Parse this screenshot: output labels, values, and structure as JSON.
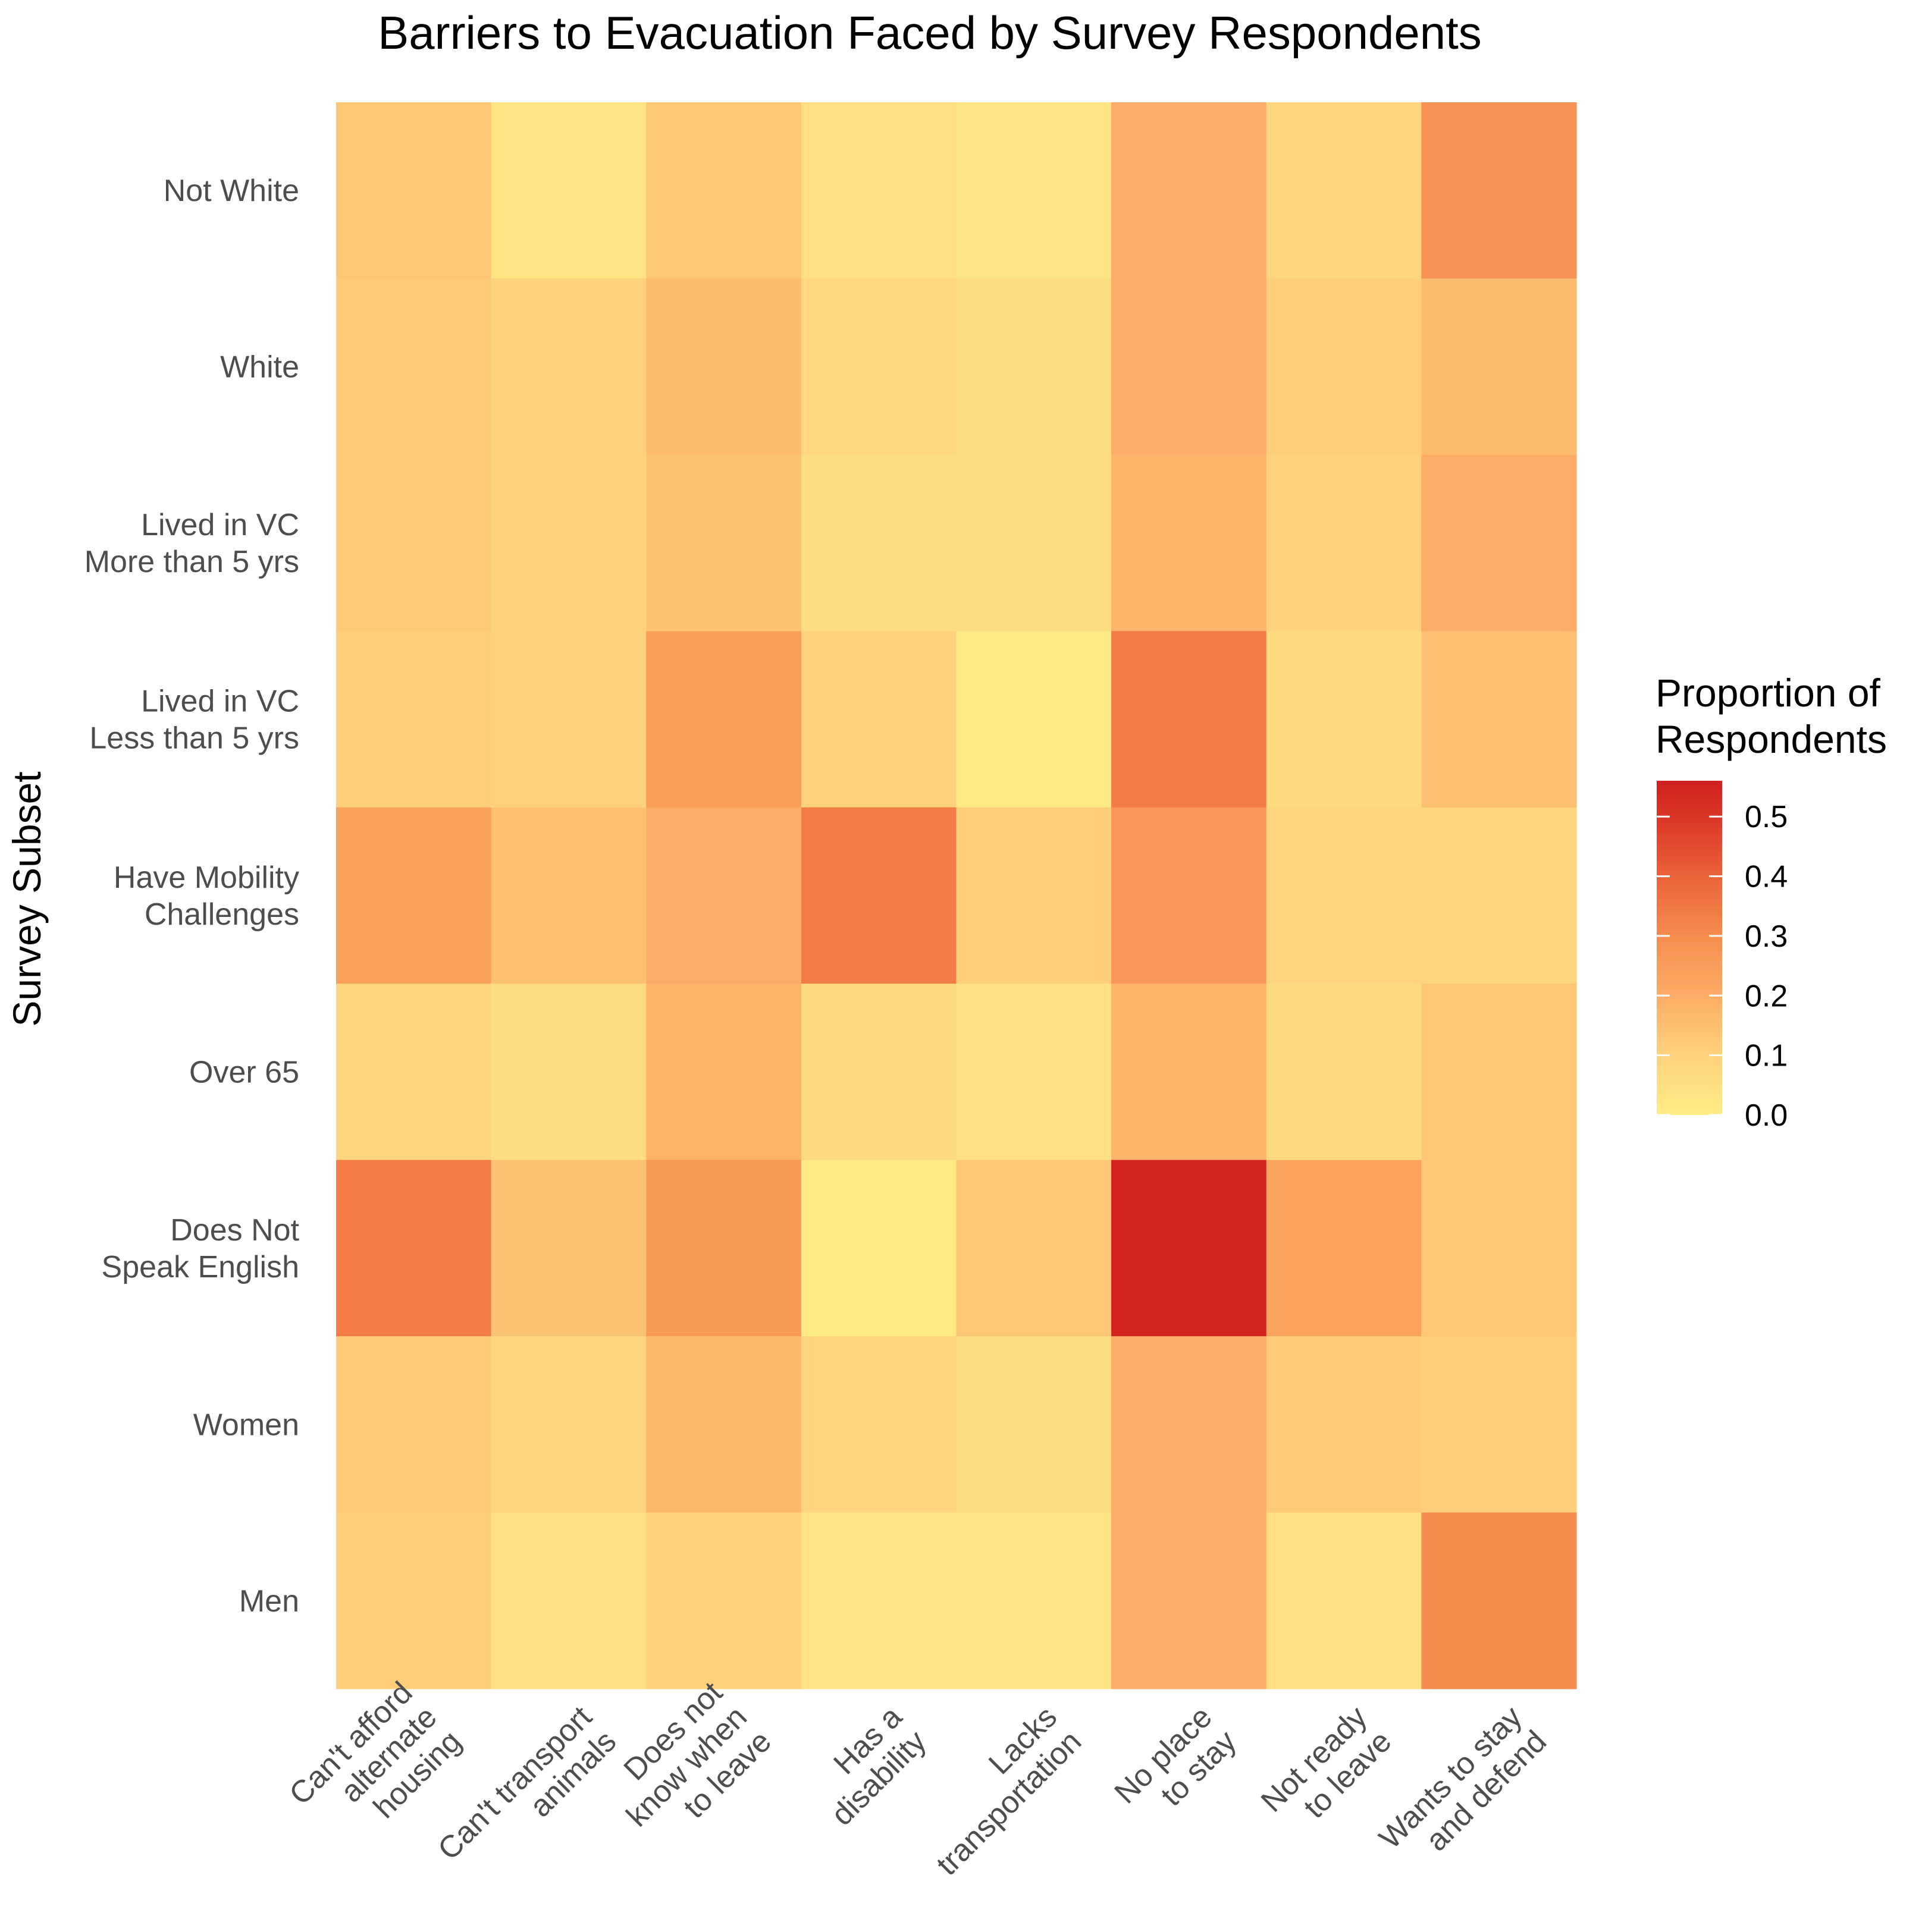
{
  "chart_data": {
    "type": "heatmap",
    "title": "Barriers to Evacuation Faced by Survey Respondents",
    "xlabel": "",
    "ylabel": "Survey Subset",
    "columns": [
      {
        "label_lines": [
          "Can't afford",
          "alternate",
          "housing"
        ]
      },
      {
        "label_lines": [
          "Can't transport",
          "animals"
        ]
      },
      {
        "label_lines": [
          "Does not",
          "know when",
          "to leave"
        ]
      },
      {
        "label_lines": [
          "Has a",
          "disability"
        ]
      },
      {
        "label_lines": [
          "Lacks",
          "transportation"
        ]
      },
      {
        "label_lines": [
          "No place",
          "to stay"
        ]
      },
      {
        "label_lines": [
          "Not ready",
          "to leave"
        ]
      },
      {
        "label_lines": [
          "Wants to stay",
          "and defend"
        ]
      }
    ],
    "rows": [
      {
        "label_lines": [
          "Not White"
        ],
        "values": [
          0.13,
          0.03,
          0.13,
          0.05,
          0.03,
          0.2,
          0.09,
          0.28
        ]
      },
      {
        "label_lines": [
          "White"
        ],
        "values": [
          0.12,
          0.1,
          0.16,
          0.08,
          0.06,
          0.2,
          0.11,
          0.16
        ]
      },
      {
        "label_lines": [
          "Lived in VC",
          "More than 5 yrs"
        ],
        "values": [
          0.12,
          0.1,
          0.14,
          0.06,
          0.06,
          0.18,
          0.1,
          0.2
        ]
      },
      {
        "label_lines": [
          "Lived in VC",
          "Less than 5 yrs"
        ],
        "values": [
          0.11,
          0.1,
          0.25,
          0.1,
          0.01,
          0.34,
          0.07,
          0.15
        ]
      },
      {
        "label_lines": [
          "Have Mobility",
          "Challenges"
        ],
        "values": [
          0.24,
          0.15,
          0.2,
          0.34,
          0.11,
          0.27,
          0.09,
          0.09
        ]
      },
      {
        "label_lines": [
          "Over 65"
        ],
        "values": [
          0.09,
          0.06,
          0.18,
          0.07,
          0.05,
          0.18,
          0.07,
          0.13
        ]
      },
      {
        "label_lines": [
          "Does Not",
          "Speak English"
        ],
        "values": [
          0.34,
          0.14,
          0.26,
          0.01,
          0.13,
          0.55,
          0.23,
          0.13
        ]
      },
      {
        "label_lines": [
          "Women"
        ],
        "values": [
          0.12,
          0.09,
          0.17,
          0.09,
          0.06,
          0.2,
          0.12,
          0.11
        ]
      },
      {
        "label_lines": [
          "Men"
        ],
        "values": [
          0.11,
          0.05,
          0.1,
          0.03,
          0.03,
          0.2,
          0.05,
          0.3
        ]
      }
    ],
    "color_scale": {
      "title_lines": [
        "Proportion of",
        "Respondents"
      ],
      "min": 0.0,
      "max": 0.56,
      "stops": [
        {
          "value": 0.0,
          "color": "#FFEC85"
        },
        {
          "value": 0.1,
          "color": "#FED27D"
        },
        {
          "value": 0.2,
          "color": "#FCAC66"
        },
        {
          "value": 0.3,
          "color": "#F58D4F"
        },
        {
          "value": 0.4,
          "color": "#EA6238"
        },
        {
          "value": 0.5,
          "color": "#DA3627"
        },
        {
          "value": 0.56,
          "color": "#D01F20"
        }
      ],
      "ticks": [
        0.0,
        0.1,
        0.2,
        0.3,
        0.4,
        0.5
      ],
      "tick_labels": [
        "0.0",
        "0.1",
        "0.2",
        "0.3",
        "0.4",
        "0.5"
      ]
    }
  }
}
